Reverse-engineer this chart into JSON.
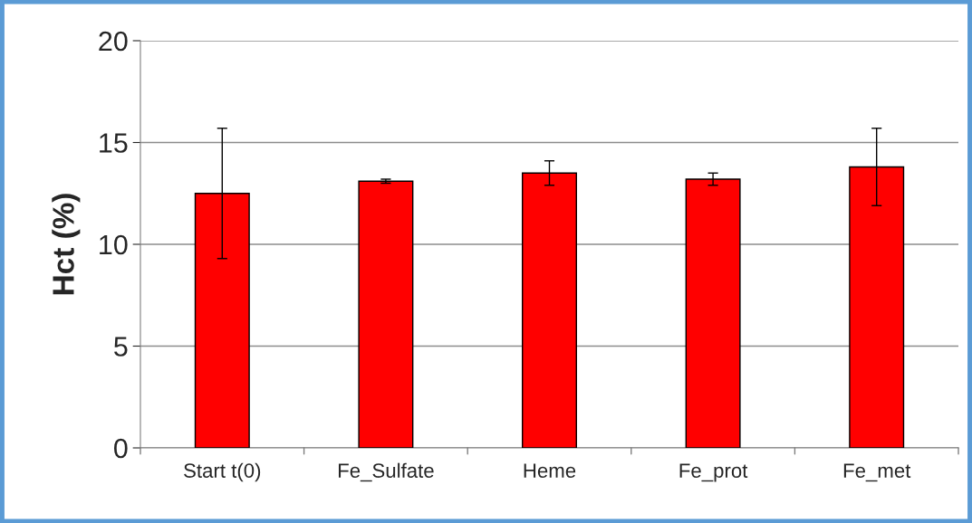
{
  "chart_data": {
    "type": "bar",
    "ylabel": "Hct (%)",
    "categories": [
      "Start t(0)",
      "Fe_Sulfate",
      "Heme",
      "Fe_prot",
      "Fe_met"
    ],
    "values": [
      12.5,
      13.1,
      13.5,
      13.2,
      13.8
    ],
    "errors": [
      3.2,
      0.1,
      0.6,
      0.3,
      1.9
    ],
    "color": "#ff0000",
    "ylim": [
      0,
      20
    ],
    "yticks": [
      0,
      5,
      10,
      15,
      20
    ],
    "grid": "y"
  }
}
